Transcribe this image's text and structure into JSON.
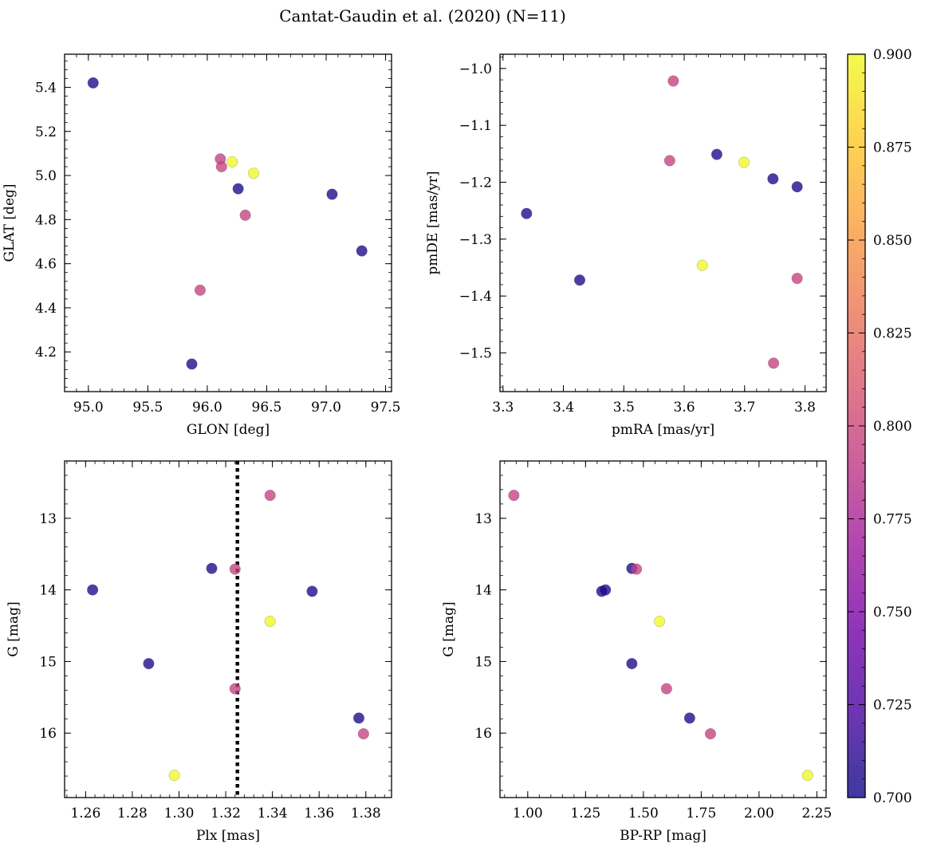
{
  "figure": {
    "title": "Cantat-Gaudin et al. (2020) (N=11)"
  },
  "colorbar": {
    "vmin": 0.7,
    "vmax": 0.9,
    "tick_labels": [
      "0.700",
      "0.725",
      "0.750",
      "0.775",
      "0.800",
      "0.825",
      "0.850",
      "0.875",
      "0.900"
    ],
    "colormap": [
      "#0d0887",
      "#46039f",
      "#7201a8",
      "#9c179e",
      "#bd3786",
      "#d8576b",
      "#ed7953",
      "#fb9f3a",
      "#fdca26",
      "#f0f921"
    ]
  },
  "chart_data": [
    {
      "type": "scatter",
      "name": "glon-glat",
      "xlabel": "GLON [deg]",
      "ylabel": "GLAT [deg]",
      "xlim": [
        94.8,
        97.55
      ],
      "ylim": [
        4.02,
        5.55
      ],
      "y_inverted": false,
      "xticks": [
        95.0,
        95.5,
        96.0,
        96.5,
        97.0,
        97.5
      ],
      "xtick_labels": [
        "95.0",
        "95.5",
        "96.0",
        "96.5",
        "97.0",
        "97.5"
      ],
      "yticks": [
        4.2,
        4.4,
        4.6,
        4.8,
        5.0,
        5.2,
        5.4
      ],
      "ytick_labels": [
        "4.2",
        "4.4",
        "4.6",
        "4.8",
        "5.0",
        "5.2",
        "5.4"
      ],
      "x": [
        95.04,
        96.11,
        96.12,
        96.21,
        96.39,
        96.26,
        97.05,
        96.32,
        97.3,
        95.94,
        95.87
      ],
      "y": [
        5.42,
        5.075,
        5.04,
        5.062,
        5.01,
        4.94,
        4.915,
        4.82,
        4.658,
        4.48,
        4.145
      ],
      "c": [
        0.705,
        0.795,
        0.795,
        0.9,
        0.9,
        0.705,
        0.705,
        0.795,
        0.705,
        0.795,
        0.705
      ],
      "vline": null
    },
    {
      "type": "scatter",
      "name": "pmra-pmde",
      "xlabel": "pmRA [mas/yr]",
      "ylabel": "pmDE [mas/yr]",
      "xlim": [
        3.295,
        3.835
      ],
      "ylim": [
        -1.568,
        -0.975
      ],
      "y_inverted": false,
      "xticks": [
        3.3,
        3.4,
        3.5,
        3.6,
        3.7,
        3.8
      ],
      "xtick_labels": [
        "3.3",
        "3.4",
        "3.5",
        "3.6",
        "3.7",
        "3.8"
      ],
      "yticks": [
        -1.5,
        -1.4,
        -1.3,
        -1.2,
        -1.1,
        -1.0
      ],
      "ytick_labels": [
        "−1.5",
        "−1.4",
        "−1.3",
        "−1.2",
        "−1.1",
        "−1.0"
      ],
      "x": [
        3.582,
        3.576,
        3.654,
        3.699,
        3.747,
        3.787,
        3.339,
        3.427,
        3.63,
        3.787,
        3.748
      ],
      "y": [
        -1.022,
        -1.162,
        -1.151,
        -1.165,
        -1.194,
        -1.208,
        -1.255,
        -1.372,
        -1.346,
        -1.369,
        -1.518
      ],
      "c": [
        0.795,
        0.795,
        0.705,
        0.9,
        0.705,
        0.705,
        0.705,
        0.705,
        0.9,
        0.795,
        0.795
      ],
      "vline": null
    },
    {
      "type": "scatter",
      "name": "plx-g",
      "xlabel": "Plx [mas]",
      "ylabel": "G [mag]",
      "xlim": [
        1.251,
        1.391
      ],
      "ylim": [
        12.2,
        16.9
      ],
      "y_inverted": true,
      "xticks": [
        1.26,
        1.28,
        1.3,
        1.32,
        1.34,
        1.36,
        1.38
      ],
      "xtick_labels": [
        "1.26",
        "1.28",
        "1.30",
        "1.32",
        "1.34",
        "1.36",
        "1.38"
      ],
      "yticks": [
        13,
        14,
        15,
        16
      ],
      "ytick_labels": [
        "13",
        "14",
        "15",
        "16"
      ],
      "x": [
        1.339,
        1.263,
        1.314,
        1.324,
        1.357,
        1.339,
        1.287,
        1.324,
        1.377,
        1.379,
        1.298
      ],
      "y": [
        12.68,
        14.0,
        13.7,
        13.71,
        14.02,
        14.44,
        15.03,
        15.38,
        15.79,
        16.01,
        16.59
      ],
      "c": [
        0.795,
        0.705,
        0.705,
        0.795,
        0.705,
        0.9,
        0.705,
        0.795,
        0.705,
        0.795,
        0.9
      ],
      "vline": 1.325
    },
    {
      "type": "scatter",
      "name": "bprp-g",
      "xlabel": "BP-RP [mag]",
      "ylabel": "G [mag]",
      "xlim": [
        0.88,
        2.29
      ],
      "ylim": [
        12.2,
        16.9
      ],
      "y_inverted": true,
      "xticks": [
        1.0,
        1.25,
        1.5,
        1.75,
        2.0,
        2.25
      ],
      "xtick_labels": [
        "1.00",
        "1.25",
        "1.50",
        "1.75",
        "2.00",
        "2.25"
      ],
      "yticks": [
        13,
        14,
        15,
        16
      ],
      "ytick_labels": [
        "13",
        "14",
        "15",
        "16"
      ],
      "x": [
        0.94,
        1.45,
        1.47,
        1.336,
        1.32,
        1.57,
        1.45,
        1.6,
        1.7,
        1.79,
        2.21
      ],
      "y": [
        12.68,
        13.7,
        13.71,
        14.0,
        14.02,
        14.44,
        15.03,
        15.38,
        15.79,
        16.01,
        16.59
      ],
      "c": [
        0.795,
        0.705,
        0.795,
        0.705,
        0.705,
        0.9,
        0.705,
        0.795,
        0.705,
        0.795,
        0.9
      ],
      "vline": null
    }
  ]
}
